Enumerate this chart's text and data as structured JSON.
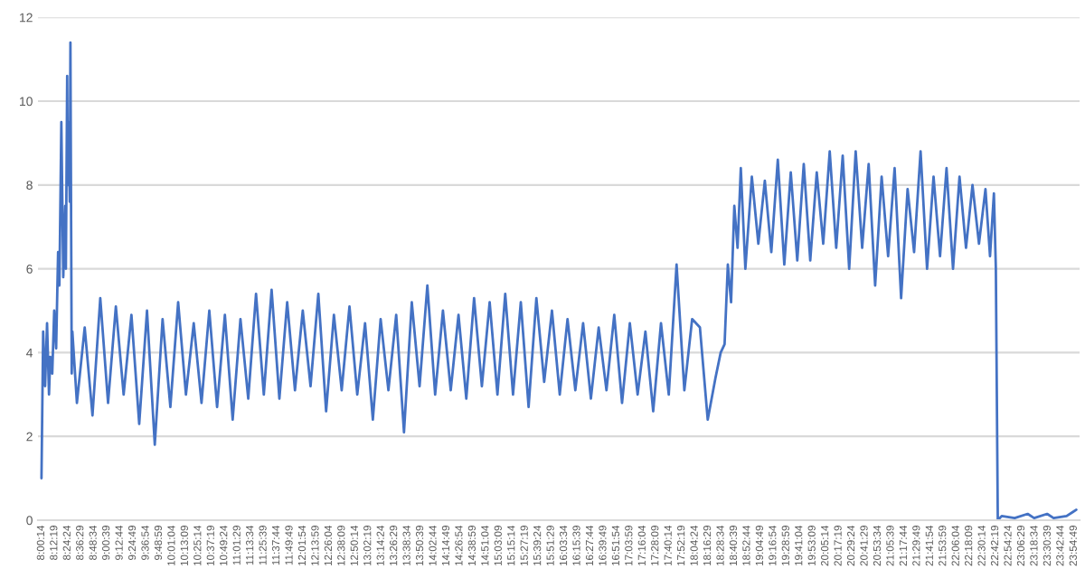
{
  "chart_data": {
    "type": "line",
    "x": [
      8.004,
      8.03,
      8.06,
      8.09,
      8.12,
      8.14,
      8.17,
      8.2,
      8.23,
      8.26,
      8.28,
      8.31,
      8.34,
      8.37,
      8.38,
      8.4,
      8.41,
      8.42,
      8.44,
      8.45,
      8.47,
      8.48,
      8.55,
      8.67,
      8.79,
      8.91,
      9.03,
      9.15,
      9.27,
      9.39,
      9.51,
      9.63,
      9.75,
      9.87,
      9.99,
      10.11,
      10.23,
      10.35,
      10.47,
      10.59,
      10.71,
      10.83,
      10.95,
      11.07,
      11.19,
      11.31,
      11.43,
      11.55,
      11.67,
      11.79,
      11.91,
      12.03,
      12.15,
      12.27,
      12.39,
      12.51,
      12.63,
      12.75,
      12.87,
      12.99,
      13.11,
      13.23,
      13.35,
      13.47,
      13.59,
      13.71,
      13.83,
      13.95,
      14.07,
      14.19,
      14.31,
      14.43,
      14.55,
      14.67,
      14.79,
      14.91,
      15.03,
      15.15,
      15.27,
      15.39,
      15.51,
      15.63,
      15.75,
      15.87,
      15.99,
      16.11,
      16.23,
      16.35,
      16.47,
      16.59,
      16.71,
      16.83,
      16.95,
      17.07,
      17.19,
      17.31,
      17.43,
      17.55,
      17.67,
      17.79,
      17.91,
      18.03,
      18.15,
      18.27,
      18.39,
      18.47,
      18.53,
      18.58,
      18.63,
      18.68,
      18.73,
      18.78,
      18.85,
      18.95,
      19.05,
      19.15,
      19.25,
      19.35,
      19.45,
      19.55,
      19.65,
      19.75,
      19.85,
      19.95,
      20.05,
      20.15,
      20.25,
      20.35,
      20.45,
      20.55,
      20.65,
      20.75,
      20.85,
      20.95,
      21.05,
      21.15,
      21.25,
      21.35,
      21.45,
      21.55,
      21.65,
      21.75,
      21.85,
      21.95,
      22.05,
      22.15,
      22.25,
      22.35,
      22.45,
      22.55,
      22.62,
      22.68,
      22.71,
      22.74,
      22.8,
      23.0,
      23.2,
      23.3,
      23.5,
      23.6,
      23.8,
      23.9,
      23.95
    ],
    "series": [
      {
        "color": "#4472c4",
        "values": [
          1.0,
          4.5,
          3.2,
          4.7,
          3.0,
          3.9,
          3.5,
          5.0,
          4.1,
          6.4,
          5.6,
          9.5,
          5.8,
          7.5,
          6.0,
          10.6,
          8.0,
          9.5,
          7.6,
          11.4,
          3.5,
          4.5,
          2.8,
          4.6,
          2.5,
          5.3,
          2.8,
          5.1,
          3.0,
          4.9,
          2.3,
          5.0,
          1.8,
          4.8,
          2.7,
          5.2,
          3.0,
          4.7,
          2.8,
          5.0,
          2.7,
          4.9,
          2.4,
          4.8,
          2.9,
          5.4,
          3.0,
          5.5,
          2.9,
          5.2,
          3.1,
          5.0,
          3.2,
          5.4,
          2.6,
          4.9,
          3.1,
          5.1,
          3.0,
          4.7,
          2.4,
          4.8,
          3.1,
          4.9,
          2.1,
          5.2,
          3.2,
          5.6,
          3.0,
          5.0,
          3.1,
          4.9,
          2.9,
          5.3,
          3.2,
          5.2,
          3.0,
          5.4,
          3.0,
          5.2,
          2.7,
          5.3,
          3.3,
          5.0,
          3.0,
          4.8,
          3.1,
          4.7,
          2.9,
          4.6,
          3.1,
          4.9,
          2.8,
          4.7,
          3.0,
          4.5,
          2.6,
          4.7,
          3.0,
          6.1,
          3.1,
          4.8,
          4.6,
          2.4,
          3.4,
          4.0,
          4.2,
          6.1,
          5.2,
          7.5,
          6.5,
          8.4,
          6.0,
          8.2,
          6.6,
          8.1,
          6.4,
          8.6,
          6.1,
          8.3,
          6.2,
          8.5,
          6.2,
          8.3,
          6.6,
          8.8,
          6.5,
          8.7,
          6.0,
          8.8,
          6.5,
          8.5,
          5.6,
          8.2,
          6.3,
          8.4,
          5.3,
          7.9,
          6.4,
          8.8,
          6.0,
          8.2,
          6.3,
          8.4,
          6.0,
          8.2,
          6.5,
          8.0,
          6.6,
          7.9,
          6.3,
          7.8,
          6.0,
          0.0,
          0.1,
          0.05,
          0.15,
          0.05,
          0.15,
          0.05,
          0.1,
          0.2,
          0.25
        ]
      }
    ],
    "xlim": [
      7.95,
      24.0
    ],
    "xticks": [
      {
        "value": 8.00389,
        "label": "8:00:14"
      },
      {
        "value": 8.20528,
        "label": "8:12:19"
      },
      {
        "value": 8.40667,
        "label": "8:24:24"
      },
      {
        "value": 8.60806,
        "label": "8:36:29"
      },
      {
        "value": 8.80944,
        "label": "8:48:34"
      },
      {
        "value": 9.01083,
        "label": "9:00:39"
      },
      {
        "value": 9.21222,
        "label": "9:12:44"
      },
      {
        "value": 9.41361,
        "label": "9:24:49"
      },
      {
        "value": 9.615,
        "label": "9:36:54"
      },
      {
        "value": 9.81639,
        "label": "9:48:59"
      },
      {
        "value": 10.01778,
        "label": "10:01:04"
      },
      {
        "value": 10.21917,
        "label": "10:13:09"
      },
      {
        "value": 10.42056,
        "label": "10:25:14"
      },
      {
        "value": 10.62194,
        "label": "10:37:19"
      },
      {
        "value": 10.82333,
        "label": "10:49:24"
      },
      {
        "value": 11.02472,
        "label": "11:01:29"
      },
      {
        "value": 11.22611,
        "label": "11:13:34"
      },
      {
        "value": 11.4275,
        "label": "11:25:39"
      },
      {
        "value": 11.62889,
        "label": "11:37:44"
      },
      {
        "value": 11.83028,
        "label": "11:49:49"
      },
      {
        "value": 12.03167,
        "label": "12:01:54"
      },
      {
        "value": 12.23306,
        "label": "12:13:59"
      },
      {
        "value": 12.43444,
        "label": "12:26:04"
      },
      {
        "value": 12.63583,
        "label": "12:38:09"
      },
      {
        "value": 12.83722,
        "label": "12:50:14"
      },
      {
        "value": 13.03861,
        "label": "13:02:19"
      },
      {
        "value": 13.24,
        "label": "13:14:24"
      },
      {
        "value": 13.44139,
        "label": "13:26:29"
      },
      {
        "value": 13.64278,
        "label": "13:38:34"
      },
      {
        "value": 13.84417,
        "label": "13:50:39"
      },
      {
        "value": 14.04556,
        "label": "14:02:44"
      },
      {
        "value": 14.24694,
        "label": "14:14:49"
      },
      {
        "value": 14.44833,
        "label": "14:26:54"
      },
      {
        "value": 14.64972,
        "label": "14:38:59"
      },
      {
        "value": 14.85111,
        "label": "14:51:04"
      },
      {
        "value": 15.0525,
        "label": "15:03:09"
      },
      {
        "value": 15.25389,
        "label": "15:15:14"
      },
      {
        "value": 15.45528,
        "label": "15:27:19"
      },
      {
        "value": 15.65667,
        "label": "15:39:24"
      },
      {
        "value": 15.85806,
        "label": "15:51:29"
      },
      {
        "value": 16.05944,
        "label": "16:03:34"
      },
      {
        "value": 16.26083,
        "label": "16:15:39"
      },
      {
        "value": 16.46222,
        "label": "16:27:44"
      },
      {
        "value": 16.66361,
        "label": "16:39:49"
      },
      {
        "value": 16.865,
        "label": "16:51:54"
      },
      {
        "value": 17.06639,
        "label": "17:03:59"
      },
      {
        "value": 17.26778,
        "label": "17:16:04"
      },
      {
        "value": 17.46917,
        "label": "17:28:09"
      },
      {
        "value": 17.67056,
        "label": "17:40:14"
      },
      {
        "value": 17.87194,
        "label": "17:52:19"
      },
      {
        "value": 18.07333,
        "label": "18:04:24"
      },
      {
        "value": 18.27472,
        "label": "18:16:29"
      },
      {
        "value": 18.47611,
        "label": "18:28:34"
      },
      {
        "value": 18.6775,
        "label": "18:40:39"
      },
      {
        "value": 18.87889,
        "label": "18:52:44"
      },
      {
        "value": 19.08028,
        "label": "19:04:49"
      },
      {
        "value": 19.28167,
        "label": "19:16:54"
      },
      {
        "value": 19.48306,
        "label": "19:28:59"
      },
      {
        "value": 19.68444,
        "label": "19:41:04"
      },
      {
        "value": 19.88583,
        "label": "19:53:09"
      },
      {
        "value": 20.08722,
        "label": "20:05:14"
      },
      {
        "value": 20.28861,
        "label": "20:17:19"
      },
      {
        "value": 20.49,
        "label": "20:29:24"
      },
      {
        "value": 20.69139,
        "label": "20:41:29"
      },
      {
        "value": 20.89278,
        "label": "20:53:34"
      },
      {
        "value": 21.09417,
        "label": "21:05:39"
      },
      {
        "value": 21.29556,
        "label": "21:17:44"
      },
      {
        "value": 21.49694,
        "label": "21:29:49"
      },
      {
        "value": 21.69833,
        "label": "21:41:54"
      },
      {
        "value": 21.89972,
        "label": "21:53:59"
      },
      {
        "value": 22.10111,
        "label": "22:06:04"
      },
      {
        "value": 22.3025,
        "label": "22:18:09"
      },
      {
        "value": 22.50389,
        "label": "22:30:14"
      },
      {
        "value": 22.70528,
        "label": "22:42:19"
      },
      {
        "value": 22.90667,
        "label": "22:54:24"
      },
      {
        "value": 23.10806,
        "label": "23:06:29"
      },
      {
        "value": 23.30944,
        "label": "23:18:34"
      },
      {
        "value": 23.51083,
        "label": "23:30:39"
      },
      {
        "value": 23.71222,
        "label": "23:42:44"
      },
      {
        "value": 23.91361,
        "label": "23:54:49"
      }
    ],
    "ylim": [
      0,
      12
    ],
    "yticks": [
      0,
      2,
      4,
      6,
      8,
      10,
      12
    ],
    "grid": "y",
    "legend": false
  }
}
